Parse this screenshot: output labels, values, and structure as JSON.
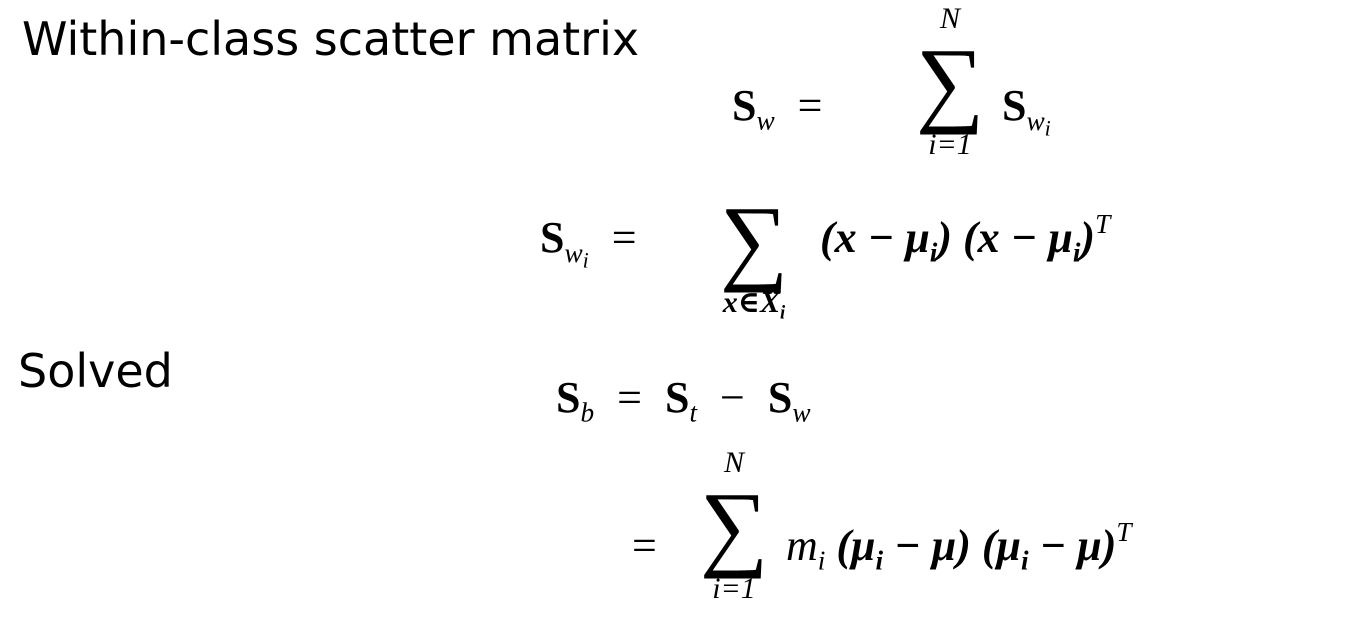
{
  "labels": {
    "within": "Within-class scatter matrix",
    "solved": "Solved"
  },
  "eq1": {
    "lhs": "S",
    "lhs_sub": "w",
    "eq": "=",
    "sum_upper": "N",
    "sum_lower": "i=1",
    "rhs": "S",
    "rhs_sub": "w",
    "rhs_subsub": "i"
  },
  "eq2": {
    "lhs": "S",
    "lhs_sub": "w",
    "lhs_subsub": "i",
    "eq": "=",
    "sum_lower": "x∈X",
    "sum_lower_sub": "i",
    "term1": "(x − μ",
    "term1_sub": "i",
    "term1_close": ")",
    "term2": "(x − μ",
    "term2_sub": "i",
    "term2_close": ")",
    "term2_sup": "T"
  },
  "eq3": {
    "lhs": "S",
    "lhs_sub": "b",
    "eq": "=",
    "a": "S",
    "a_sub": "t",
    "minus": "−",
    "b": "S",
    "b_sub": "w"
  },
  "eq4": {
    "eq": "=",
    "sum_upper": "N",
    "sum_lower": "i=1",
    "m": "m",
    "m_sub": "i",
    "term1": "(μ",
    "term1_sub": "i",
    "term1_rest": " − μ)",
    "term2": "(μ",
    "term2_sub": "i",
    "term2_rest": " − μ)",
    "term2_sup": "T"
  }
}
